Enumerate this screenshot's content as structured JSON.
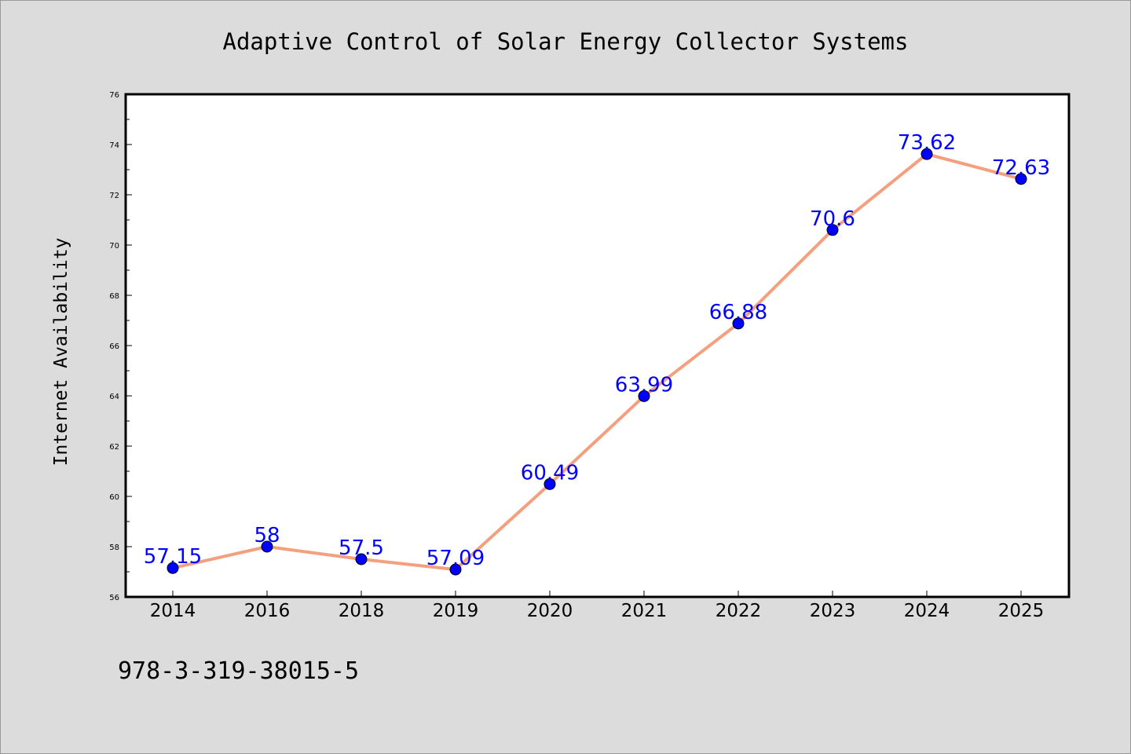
{
  "chart_data": {
    "type": "line",
    "title": "Adaptive Control of Solar Energy Collector Systems",
    "xlabel": "",
    "ylabel": "Internet Availability",
    "categories": [
      "2014",
      "2016",
      "2018",
      "2019",
      "2020",
      "2021",
      "2022",
      "2023",
      "2024",
      "2025"
    ],
    "series": [
      {
        "values": [
          57.15,
          58,
          57.5,
          57.09,
          60.49,
          63.99,
          66.88,
          70.6,
          73.62,
          72.63
        ],
        "labels": [
          "57.15",
          "58",
          "57.5",
          "57.09",
          "60.49",
          "63.99",
          "66.88",
          "70.6",
          "73.62",
          "72.63"
        ]
      }
    ],
    "ylim": [
      56,
      76
    ],
    "yticks": [
      "56",
      "58",
      "60",
      "62",
      "64",
      "66",
      "68",
      "70",
      "72",
      "74",
      "76"
    ],
    "grid": false,
    "legend": "none",
    "line_color": "#f4a07f",
    "marker_color": "#0000ff",
    "label_color": "#0000ff",
    "background": "#dcdcdc",
    "plot_background": "#ffffff"
  },
  "footer": {
    "isbn": "978-3-319-38015-5"
  }
}
